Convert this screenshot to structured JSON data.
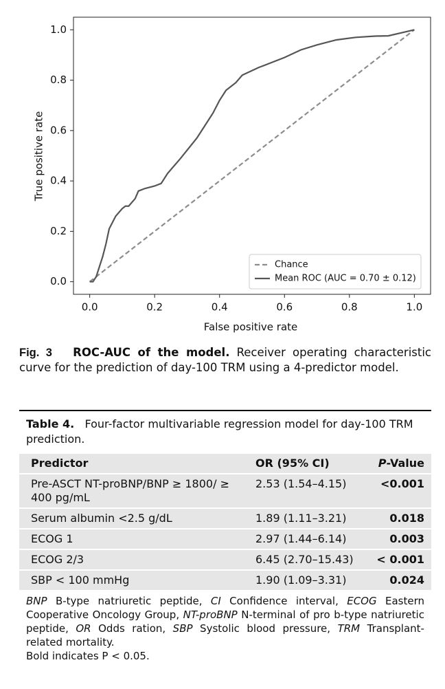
{
  "chart_data": {
    "type": "line",
    "xlabel": "False positive rate",
    "ylabel": "True positive rate",
    "xlim": [
      -0.05,
      1.05
    ],
    "ylim": [
      -0.05,
      1.05
    ],
    "xticks": [
      {
        "value": 0,
        "label": "0.0"
      },
      0.2,
      0.4,
      0.6,
      0.8,
      {
        "value": 1,
        "label": "1.0"
      }
    ],
    "yticks": [
      {
        "value": 0,
        "label": "0.0"
      },
      0.2,
      0.4,
      0.6,
      0.8,
      {
        "value": 1,
        "label": "1.0"
      }
    ],
    "legend": "lower right",
    "series": [
      {
        "name": "Chance",
        "color": "#8c8c8c",
        "line_style": "dashed",
        "x": [
          0,
          1
        ],
        "values": [
          0,
          1
        ]
      },
      {
        "name": "Mean ROC (AUC = 0.70 ± 0.12)",
        "color": "#555555",
        "line_style": "solid",
        "x": [
          0,
          0.01,
          0.02,
          0.03,
          0.04,
          0.05,
          0.06,
          0.08,
          0.1,
          0.11,
          0.12,
          0.14,
          0.15,
          0.17,
          0.2,
          0.22,
          0.24,
          0.28,
          0.33,
          0.36,
          0.38,
          0.4,
          0.42,
          0.45,
          0.47,
          0.52,
          0.6,
          0.65,
          0.7,
          0.76,
          0.82,
          0.88,
          0.92,
          1
        ],
        "values": [
          0,
          0,
          0.02,
          0.06,
          0.1,
          0.15,
          0.21,
          0.26,
          0.29,
          0.3,
          0.3,
          0.33,
          0.36,
          0.37,
          0.38,
          0.39,
          0.43,
          0.49,
          0.57,
          0.63,
          0.67,
          0.72,
          0.76,
          0.79,
          0.82,
          0.85,
          0.89,
          0.92,
          0.94,
          0.96,
          0.97,
          0.975,
          0.976,
          1
        ]
      }
    ]
  },
  "caption": {
    "label": "Fig. 3",
    "title": "ROC-AUC of the model.",
    "text": "Receiver operating characteristic curve for the prediction of day-100 TRM using a 4-predictor model."
  },
  "table": {
    "label": "Table 4.",
    "title": "Four-factor multivariable regression model for day-100 TRM prediction.",
    "header": [
      "Predictor",
      "OR (95% CI)",
      [
        "P",
        "-Value"
      ]
    ],
    "rows": [
      [
        "Pre-ASCT NT-proBNP/BNP ≥ 1800/ ≥ 400 pg/mL",
        "2.53 (1.54–4.15)",
        "<0.001"
      ],
      [
        "Serum albumin <2.5 g/dL",
        "1.89 (1.11–3.21)",
        "0.018"
      ],
      [
        "ECOG 1",
        "2.97 (1.44–6.14)",
        "0.003"
      ],
      [
        "ECOG 2/3",
        "6.45 (2.70–15.43)",
        "< 0.001"
      ],
      [
        "SBP < 100 mmHg",
        "1.90 (1.09–3.31)",
        "0.024"
      ]
    ],
    "footnote": {
      "abbreviations": [
        [
          "BNP",
          "B-type natriuretic peptide,"
        ],
        [
          "CI",
          "Confidence interval,"
        ],
        [
          "ECOG",
          "Eastern Cooperative Oncology Group,"
        ],
        [
          "NT-proBNP",
          "N-terminal of pro b-type natriuretic peptide,"
        ],
        [
          "OR",
          "Odds ration,"
        ],
        [
          "SBP",
          "Systolic blood pressure,"
        ],
        [
          "TRM",
          "Transplant-related mortality."
        ]
      ],
      "note": "Bold indicates P < 0.05."
    }
  }
}
